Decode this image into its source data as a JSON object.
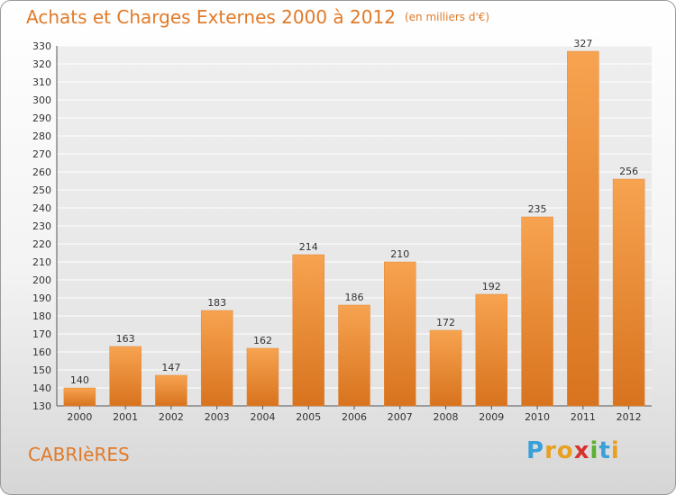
{
  "header": {
    "title": "Achats et Charges Externes 2000 à 2012",
    "unit": "(en milliers d'€)"
  },
  "footer": {
    "town": "CABRIèRES",
    "logo_letters": [
      "P",
      "r",
      "o",
      "x",
      "i",
      "t",
      "i"
    ],
    "logo_colors": [
      "#3aa0d8",
      "#e8a020",
      "#e8a020",
      "#d8302c",
      "#5ab030",
      "#3aa0d8",
      "#e8a020"
    ]
  },
  "chart_data": {
    "type": "bar",
    "title": "Achats et Charges Externes 2000 à 2012",
    "subtitle": "(en milliers d'€)",
    "xlabel": "",
    "ylabel": "",
    "categories": [
      "2000",
      "2001",
      "2002",
      "2003",
      "2004",
      "2005",
      "2006",
      "2007",
      "2008",
      "2009",
      "2010",
      "2011",
      "2012"
    ],
    "values": [
      140,
      163,
      147,
      183,
      162,
      214,
      186,
      210,
      172,
      192,
      235,
      327,
      256
    ],
    "ylim": [
      130,
      330
    ],
    "yticks": [
      130,
      140,
      150,
      160,
      170,
      180,
      190,
      200,
      210,
      220,
      230,
      240,
      250,
      260,
      270,
      280,
      290,
      300,
      310,
      320,
      330
    ],
    "grid": "horizontal",
    "bar_color": "#f29a40"
  }
}
